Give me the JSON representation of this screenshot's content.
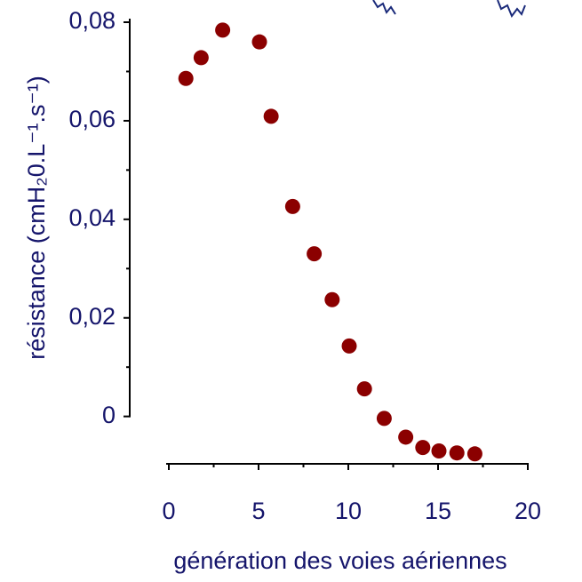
{
  "chart_data": {
    "type": "scatter",
    "xlabel": "génération des voies aériennes",
    "ylabel": "résistance (cmH₂0.L⁻¹.s⁻¹)",
    "x": [
      0.95,
      1.8,
      3,
      5.05,
      5.7,
      6.9,
      8.1,
      9.1,
      10.05,
      10.9,
      12,
      13.2,
      14.15,
      15.05,
      16.05,
      17.05
    ],
    "series": [
      {
        "color": "#8b0000",
        "values": [
          0.0686,
          0.0728,
          0.0784,
          0.076,
          0.0609,
          0.0426,
          0.033,
          0.0237,
          0.0143,
          0.0056,
          -0.0004,
          -0.0042,
          -0.0063,
          -0.007,
          -0.0074,
          -0.0076
        ]
      }
    ],
    "xlim": [
      0,
      20
    ],
    "xticks": [
      0,
      5,
      10,
      15,
      20
    ],
    "ylim": [
      -0.0098,
      0.08
    ],
    "yticks": [
      0,
      {
        "value": 0.02,
        "label": "0,02"
      },
      {
        "value": 0.04,
        "label": "0,04"
      },
      {
        "value": 0.06,
        "label": "0,06"
      },
      {
        "value": 0.08,
        "label": "0,08"
      }
    ]
  }
}
